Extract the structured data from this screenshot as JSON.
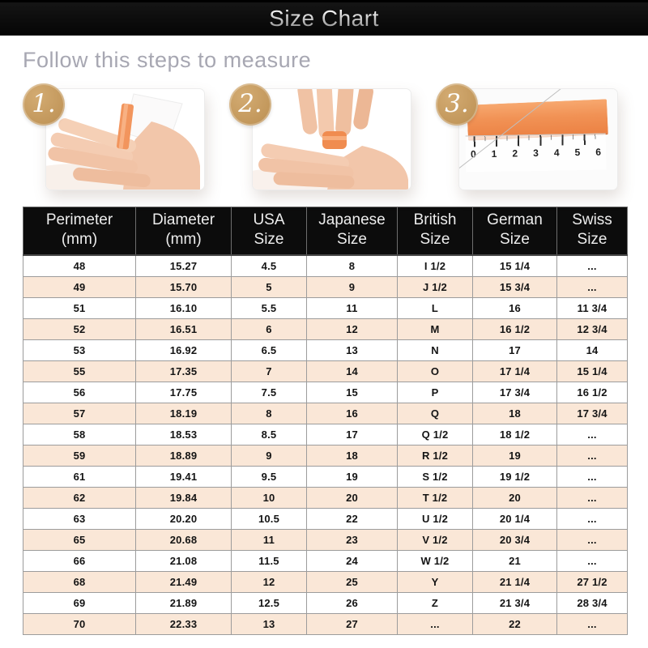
{
  "header": {
    "title": "Size Chart"
  },
  "subtitle": "Follow this steps to measure",
  "steps": [
    {
      "number": "1.",
      "illustration": "wrap-ribbon-around-finger-photo"
    },
    {
      "number": "2.",
      "illustration": "mark-ribbon-overlap-photo"
    },
    {
      "number": "3.",
      "illustration": "measure-ribbon-with-ruler-photo",
      "ruler_numbers": [
        "0",
        "1",
        "2",
        "3",
        "4",
        "5",
        "6"
      ]
    }
  ],
  "colors": {
    "title_bar_bg": "#0a0a0a",
    "badge_gold": "#c49a5f",
    "ribbon_orange": "#f08c50",
    "row_alt_peach": "#fae7d7",
    "table_border_gray": "#9c9c9c",
    "subtitle_gray": "#a7a7b2"
  },
  "chart_data": {
    "type": "table",
    "title": "Ring size conversion table",
    "columns": [
      {
        "line1": "Perimeter",
        "line2": "(mm)"
      },
      {
        "line1": "Diameter",
        "line2": "(mm)"
      },
      {
        "line1": "USA",
        "line2": "Size"
      },
      {
        "line1": "Japanese",
        "line2": "Size"
      },
      {
        "line1": "British",
        "line2": "Size"
      },
      {
        "line1": "German",
        "line2": "Size"
      },
      {
        "line1": "Swiss",
        "line2": "Size"
      }
    ],
    "rows": [
      [
        "48",
        "15.27",
        "4.5",
        "8",
        "I 1/2",
        "15 1/4",
        "..."
      ],
      [
        "49",
        "15.70",
        "5",
        "9",
        "J 1/2",
        "15 3/4",
        "..."
      ],
      [
        "51",
        "16.10",
        "5.5",
        "11",
        "L",
        "16",
        "11 3/4"
      ],
      [
        "52",
        "16.51",
        "6",
        "12",
        "M",
        "16 1/2",
        "12 3/4"
      ],
      [
        "53",
        "16.92",
        "6.5",
        "13",
        "N",
        "17",
        "14"
      ],
      [
        "55",
        "17.35",
        "7",
        "14",
        "O",
        "17 1/4",
        "15 1/4"
      ],
      [
        "56",
        "17.75",
        "7.5",
        "15",
        "P",
        "17 3/4",
        "16 1/2"
      ],
      [
        "57",
        "18.19",
        "8",
        "16",
        "Q",
        "18",
        "17 3/4"
      ],
      [
        "58",
        "18.53",
        "8.5",
        "17",
        "Q 1/2",
        "18 1/2",
        "..."
      ],
      [
        "59",
        "18.89",
        "9",
        "18",
        "R 1/2",
        "19",
        "..."
      ],
      [
        "61",
        "19.41",
        "9.5",
        "19",
        "S 1/2",
        "19 1/2",
        "..."
      ],
      [
        "62",
        "19.84",
        "10",
        "20",
        "T 1/2",
        "20",
        "..."
      ],
      [
        "63",
        "20.20",
        "10.5",
        "22",
        "U 1/2",
        "20 1/4",
        "..."
      ],
      [
        "65",
        "20.68",
        "11",
        "23",
        "V 1/2",
        "20 3/4",
        "..."
      ],
      [
        "66",
        "21.08",
        "11.5",
        "24",
        "W 1/2",
        "21",
        "..."
      ],
      [
        "68",
        "21.49",
        "12",
        "25",
        "Y",
        "21 1/4",
        "27 1/2"
      ],
      [
        "69",
        "21.89",
        "12.5",
        "26",
        "Z",
        "21 3/4",
        "28 3/4"
      ],
      [
        "70",
        "22.33",
        "13",
        "27",
        "...",
        "22",
        "..."
      ]
    ]
  }
}
